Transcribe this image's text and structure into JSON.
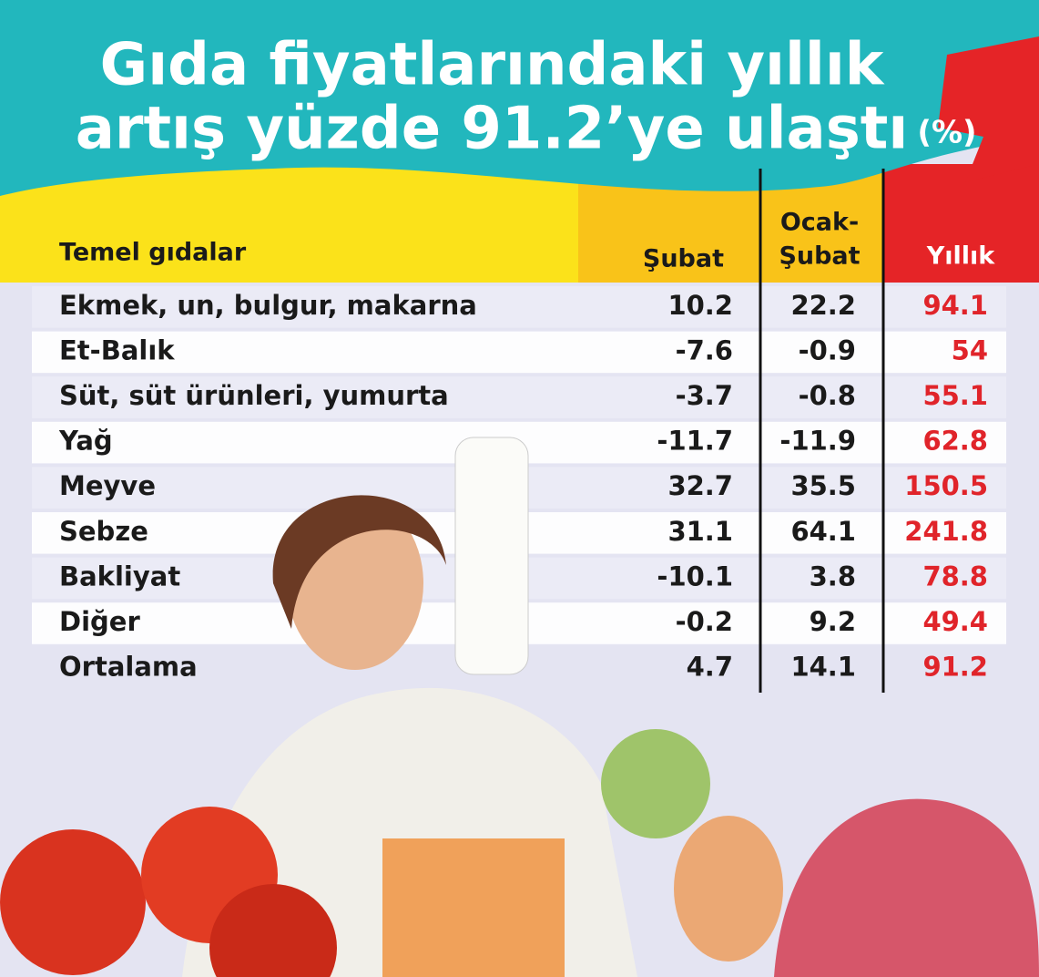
{
  "header": {
    "title_lines": [
      "Gıda fiyatlarındaki yıllık",
      "artış yüzde 91.2’ye ulaştı"
    ],
    "unit": "(%)"
  },
  "table": {
    "columns": [
      "Temel gıdalar",
      "Şubat",
      "Ocak-",
      "Şubat",
      "Yıllık"
    ],
    "rows": [
      [
        "Ekmek, un, bulgur, makarna",
        10.2,
        22.2,
        94.1
      ],
      [
        "Et-Balık",
        -7.6,
        -0.9,
        54
      ],
      [
        "Süt, süt ürünleri, yumurta",
        -3.7,
        -0.8,
        55.1
      ],
      [
        "Yağ",
        -11.7,
        -11.9,
        62.8
      ],
      [
        "Meyve",
        32.7,
        35.5,
        150.5
      ],
      [
        "Sebze",
        31.1,
        64.1,
        241.8
      ],
      [
        "Bakliyat",
        -10.1,
        3.8,
        78.8
      ],
      [
        "Diğer",
        -0.2,
        9.2,
        49.4
      ],
      [
        "Ortalama",
        4.7,
        14.1,
        91.2
      ]
    ]
  }
}
